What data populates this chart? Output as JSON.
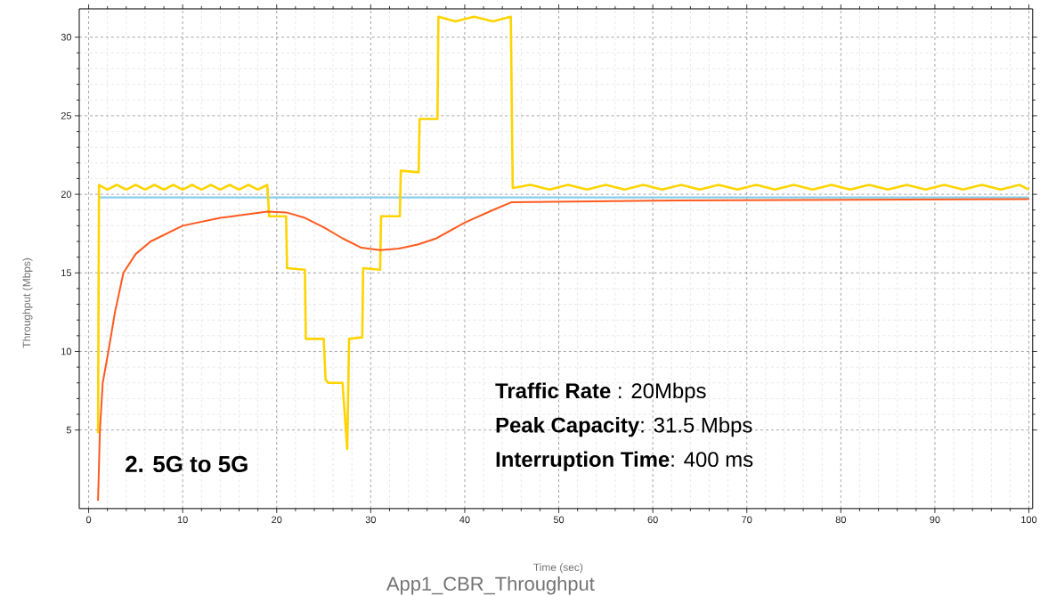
{
  "chart_data": {
    "type": "line",
    "title": "App1_CBR_Throughput",
    "xlabel": "Time (sec)",
    "ylabel": "Throughput (Mbps)",
    "xlim": [
      -1,
      100.4
    ],
    "ylim": [
      0,
      31.8
    ],
    "xticks": [
      0,
      10,
      20,
      30,
      40,
      50,
      60,
      70,
      80,
      90,
      100
    ],
    "yticks": [
      5,
      10,
      15,
      20,
      25,
      30
    ],
    "grid": true,
    "annotations": [
      "**2. 5G to 5G**",
      "**Traffic Rate** : 20Mbps",
      "**Peak Capacity**: 31.5 Mbps",
      "**Interruption Time**: 400 ms"
    ],
    "series": [
      {
        "color": "#87ceeb",
        "x": [
          1,
          100
        ],
        "values": [
          19.8,
          19.8
        ]
      },
      {
        "color": "#ffd400",
        "x": [
          1.0,
          1.1,
          2,
          3,
          4,
          5,
          6,
          7,
          8,
          9,
          10,
          11,
          12,
          13,
          14,
          15,
          16,
          17,
          18,
          19,
          19.2,
          21,
          21.1,
          23,
          23.1,
          25,
          25.2,
          25.5,
          27,
          27.5,
          27.7,
          29.1,
          29.2,
          31,
          31.1,
          33.1,
          33.2,
          35.1,
          35.2,
          37.1,
          37.2,
          39,
          41,
          43,
          44.9,
          45.1,
          47,
          49,
          51,
          53,
          55,
          57,
          59,
          61,
          63,
          65,
          67,
          69,
          71,
          73,
          75,
          77,
          79,
          81,
          83,
          85,
          87,
          89,
          91,
          93,
          95,
          97,
          99,
          100
        ],
        "values": [
          4.8,
          20.6,
          20.3,
          20.6,
          20.3,
          20.6,
          20.3,
          20.6,
          20.3,
          20.6,
          20.3,
          20.6,
          20.3,
          20.6,
          20.3,
          20.6,
          20.3,
          20.6,
          20.3,
          20.6,
          18.6,
          18.6,
          15.3,
          15.2,
          10.8,
          10.8,
          8.2,
          8.0,
          8.0,
          3.8,
          10.8,
          10.9,
          15.3,
          15.2,
          18.6,
          18.6,
          21.5,
          21.4,
          24.8,
          24.8,
          31.3,
          31.0,
          31.3,
          31.0,
          31.3,
          20.4,
          20.6,
          20.3,
          20.6,
          20.3,
          20.6,
          20.3,
          20.6,
          20.3,
          20.6,
          20.3,
          20.6,
          20.3,
          20.6,
          20.3,
          20.6,
          20.3,
          20.6,
          20.3,
          20.6,
          20.3,
          20.6,
          20.3,
          20.6,
          20.3,
          20.6,
          20.3,
          20.6,
          20.3
        ]
      },
      {
        "color": "#ff5a1f",
        "x": [
          1,
          1.2,
          1.5,
          2.1,
          2.8,
          3.7,
          5,
          6.6,
          10,
          14,
          19,
          21,
          23,
          25,
          27,
          28,
          29,
          31,
          33,
          35,
          37,
          40,
          43,
          45,
          60,
          100
        ],
        "values": [
          0.5,
          5,
          8,
          10,
          12.5,
          15,
          16.2,
          17,
          18,
          18.5,
          18.9,
          18.85,
          18.5,
          17.9,
          17.2,
          16.9,
          16.6,
          16.45,
          16.55,
          16.8,
          17.2,
          18.2,
          19,
          19.5,
          19.6,
          19.7
        ]
      }
    ]
  }
}
